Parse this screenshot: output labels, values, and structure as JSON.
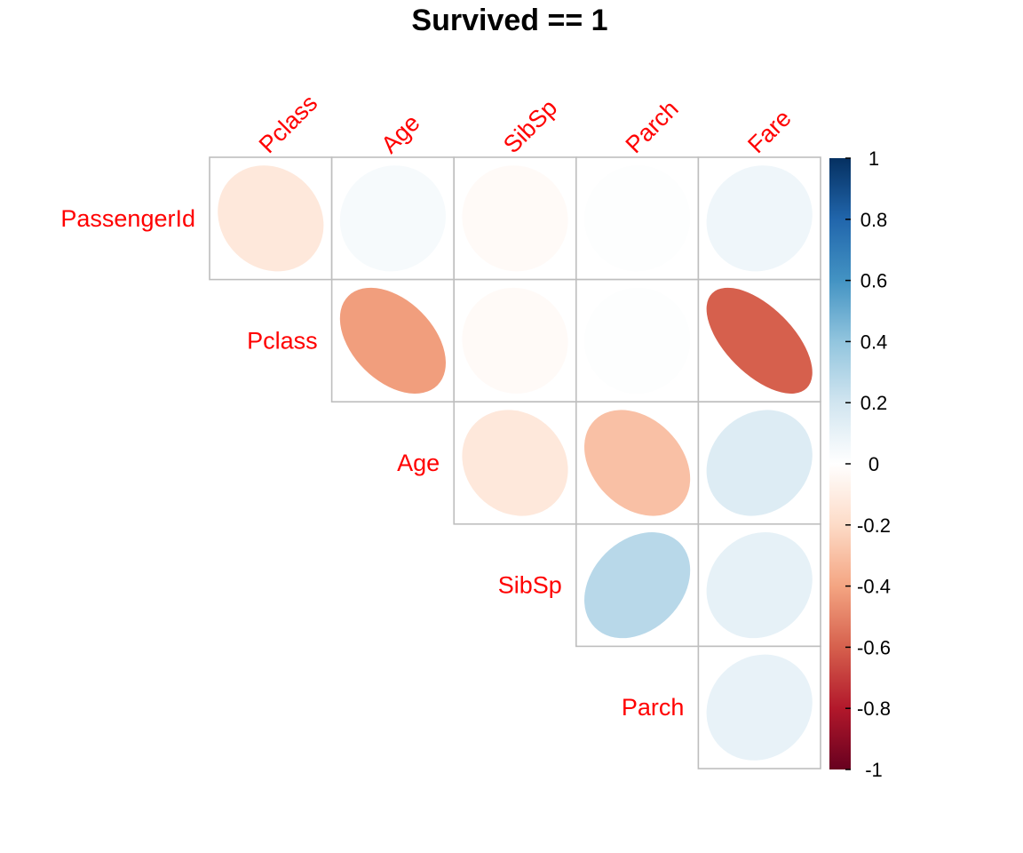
{
  "chart_data": {
    "type": "heatmap",
    "title": "Survived == 1",
    "shape": "ellipse",
    "layout": "upper-triangle",
    "row_labels": [
      "PassengerId",
      "Pclass",
      "Age",
      "SibSp",
      "Parch"
    ],
    "col_labels": [
      "Pclass",
      "Age",
      "SibSp",
      "Parch",
      "Fare"
    ],
    "label_color": "#ff0000",
    "grid_color": "#bebebe",
    "values": [
      [
        -0.13,
        0.04,
        -0.03,
        0.01,
        0.07
      ],
      [
        null,
        -0.42,
        -0.03,
        0.01,
        -0.6
      ],
      [
        null,
        null,
        -0.13,
        -0.3,
        0.15
      ],
      [
        null,
        null,
        null,
        0.28,
        0.11
      ],
      [
        null,
        null,
        null,
        null,
        0.1
      ]
    ],
    "colorbar": {
      "range": [
        -1,
        1
      ],
      "ticks": [
        "1",
        "0.8",
        "0.6",
        "0.4",
        "0.2",
        "0",
        "-0.2",
        "-0.4",
        "-0.6",
        "-0.8",
        "-1"
      ],
      "palette": [
        "#67001F",
        "#B2182B",
        "#D6604D",
        "#F4A582",
        "#FDDBC7",
        "#FFFFFF",
        "#D1E5F0",
        "#92C5DE",
        "#4393C3",
        "#2166AC",
        "#053061"
      ]
    }
  }
}
